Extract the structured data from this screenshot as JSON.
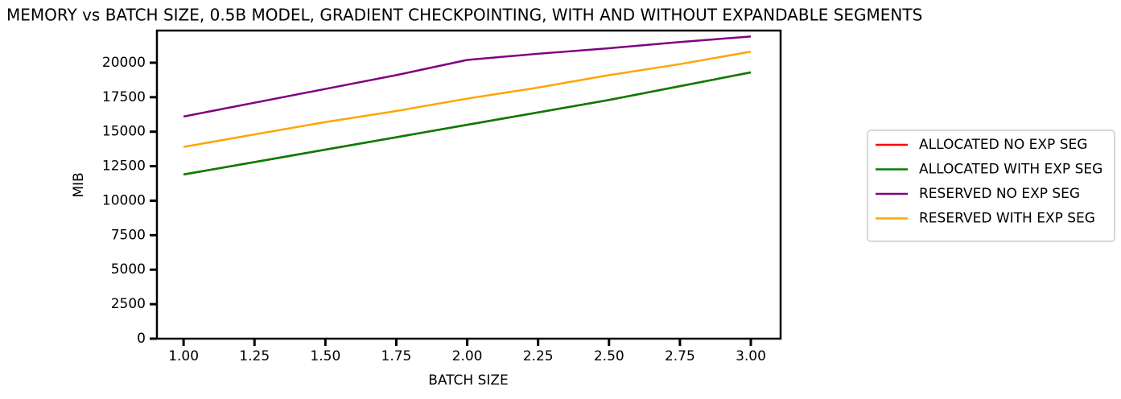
{
  "chart_data": {
    "type": "line",
    "title": "MEMORY vs BATCH SIZE, 0.5B MODEL, GRADIENT CHECKPOINTING, WITH AND WITHOUT EXPANDABLE SEGMENTS",
    "xlabel": "BATCH SIZE",
    "ylabel": "MIB",
    "x": [
      1.0,
      1.25,
      1.5,
      1.75,
      2.0,
      2.25,
      2.5,
      2.75,
      3.0
    ],
    "series": [
      {
        "name": "ALLOCATED NO EXP SEG",
        "color": "#ff0000",
        "values": [
          11900,
          12800,
          13700,
          14600,
          15500,
          16400,
          17300,
          18300,
          19300
        ]
      },
      {
        "name": "ALLOCATED WITH EXP SEG",
        "color": "#008000",
        "values": [
          11900,
          12800,
          13700,
          14600,
          15500,
          16400,
          17300,
          18300,
          19300
        ]
      },
      {
        "name": "RESERVED NO EXP SEG",
        "color": "#800080",
        "values": [
          16100,
          17100,
          18100,
          19100,
          20200,
          20650,
          21050,
          21500,
          21900
        ]
      },
      {
        "name": "RESERVED WITH EXP SEG",
        "color": "#ffa500",
        "values": [
          13900,
          14800,
          15700,
          16500,
          17400,
          18200,
          19100,
          19900,
          20800
        ]
      }
    ],
    "xlim": [
      0.906,
      3.105
    ],
    "ylim": [
      0,
      22330
    ],
    "xticks": [
      {
        "value": 1.0,
        "label": "1.00"
      },
      {
        "value": 1.25,
        "label": "1.25"
      },
      {
        "value": 1.5,
        "label": "1.50"
      },
      {
        "value": 1.75,
        "label": "1.75"
      },
      {
        "value": 2.0,
        "label": "2.00"
      },
      {
        "value": 2.25,
        "label": "2.25"
      },
      {
        "value": 2.5,
        "label": "2.50"
      },
      {
        "value": 2.75,
        "label": "2.75"
      },
      {
        "value": 3.0,
        "label": "3.00"
      }
    ],
    "yticks": [
      0,
      2500,
      5000,
      7500,
      10000,
      12500,
      15000,
      17500,
      20000
    ],
    "legend": "right"
  }
}
